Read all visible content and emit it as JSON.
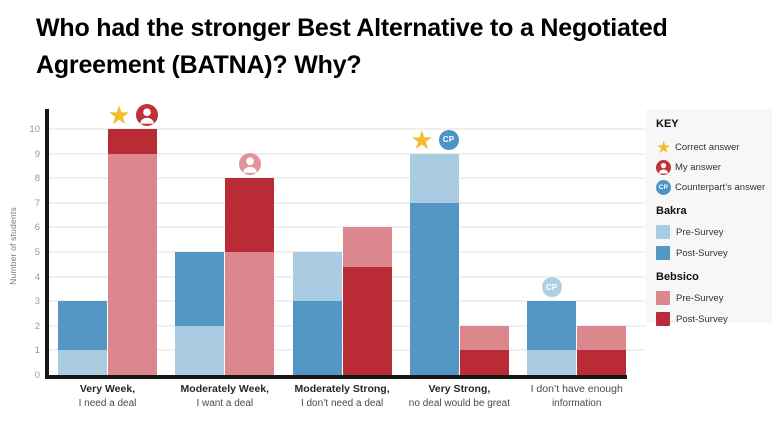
{
  "slide": {
    "title_lines": [
      "Who had the stronger Best Alternative to a Negotiated",
      "Agreement (BATNA)? Why?"
    ]
  },
  "chart_data": {
    "type": "bar",
    "title": "Who had the stronger Best Alternative to a Negotiated Agreement (BATNA)? Why?",
    "xlabel": "",
    "ylabel": "Number of students",
    "ylim": [
      0,
      10
    ],
    "yticks": [
      0,
      1,
      2,
      3,
      4,
      5,
      6,
      7,
      8,
      9,
      10
    ],
    "grid": true,
    "legend_position": "right",
    "overlay_style": "pre and post bars overlap per company; the shorter bar is drawn in front",
    "categories": [
      {
        "line1": "Very Week,",
        "line2": "I need a deal",
        "bold_line1": true
      },
      {
        "line1": "Moderately Week,",
        "line2": "I want a deal",
        "bold_line1": true
      },
      {
        "line1": "Moderately Strong,",
        "line2": "I don’t need a deal",
        "bold_line1": true
      },
      {
        "line1": "Very Strong,",
        "line2": "no deal would be great",
        "bold_line1": true
      },
      {
        "line1": "I don’t have enough",
        "line2": "information",
        "bold_line1": false
      }
    ],
    "series": [
      {
        "name": "Bakra Pre-Survey",
        "company": "bakra",
        "phase": "pre",
        "color": "#a9cce3",
        "values": [
          1,
          2,
          5,
          9,
          1
        ]
      },
      {
        "name": "Bakra Post-Survey",
        "company": "bakra",
        "phase": "post",
        "color": "#5496c4",
        "values": [
          3,
          5,
          3,
          7,
          3
        ]
      },
      {
        "name": "Bebsico Pre-Survey",
        "company": "bebsico",
        "phase": "pre",
        "color": "#dc868d",
        "values": [
          9,
          5,
          6,
          2,
          2
        ]
      },
      {
        "name": "Bebsico Post-Survey",
        "company": "bebsico",
        "phase": "post",
        "color": "#b92c35",
        "values": [
          10,
          8,
          4.4,
          1,
          1
        ]
      }
    ],
    "markers": [
      {
        "category_index": 0,
        "over": "bebsico",
        "icons": [
          "correct-answer",
          "my-answer"
        ]
      },
      {
        "category_index": 1,
        "over": "bebsico",
        "icons": [
          "my-answer-light"
        ]
      },
      {
        "category_index": 3,
        "over": "bakra",
        "icons": [
          "correct-answer",
          "counterpart-answer"
        ]
      },
      {
        "category_index": 4,
        "over": "bakra",
        "icons": [
          "counterpart-answer-light"
        ]
      }
    ]
  },
  "key": {
    "title": "KEY",
    "cp_badge_text": "CP",
    "answers": [
      {
        "icon": "correct-answer",
        "label": "Correct answer"
      },
      {
        "icon": "my-answer",
        "label": "My answer"
      },
      {
        "icon": "counterpart-answer",
        "label": "Counterpart’s answer"
      }
    ],
    "groups": [
      {
        "name": "Bakra",
        "items": [
          {
            "label": "Pre-Survey",
            "color": "#a9cce3"
          },
          {
            "label": "Post-Survey",
            "color": "#5496c4"
          }
        ]
      },
      {
        "name": "Bebsico",
        "items": [
          {
            "label": "Pre-Survey",
            "color": "#dc868d"
          },
          {
            "label": "Post-Survey",
            "color": "#b92c35"
          }
        ]
      }
    ]
  },
  "colors": {
    "star": "#f3bd2e",
    "my_answer": "#c23039",
    "my_answer_light": "#e5939a",
    "counterpart": "#4d94c6",
    "counterpart_light": "#aed0e6",
    "axis": "#161616",
    "gridline": "#f0f0f2",
    "tick_label": "#9a9a9a",
    "legend_bg": "#f7f7f8"
  }
}
